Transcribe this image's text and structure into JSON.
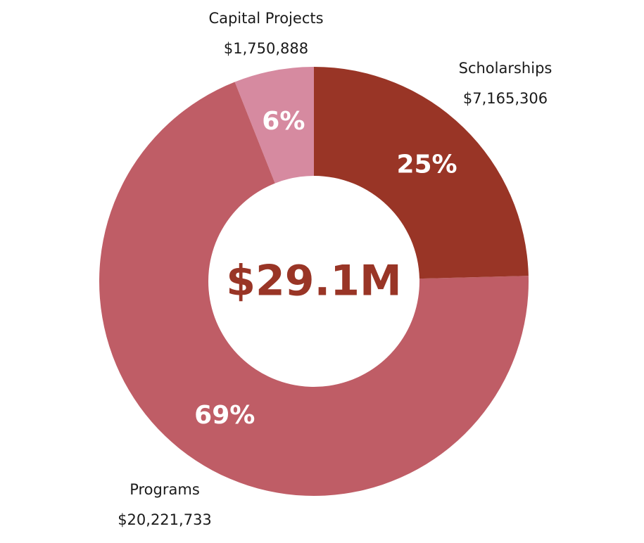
{
  "chart_data": {
    "type": "donut",
    "center_label": "$29.1M",
    "categories": [
      "Scholarships",
      "Programs",
      "Capital Projects"
    ],
    "values": [
      7165306,
      20221733,
      1750888
    ],
    "value_labels": [
      "$7,165,306",
      "$20,221,733",
      "$1,750,888"
    ],
    "percent_labels": [
      "25%",
      "69%",
      "6%"
    ],
    "colors": [
      "#993526",
      "#bf5d66",
      "#d68aa0"
    ]
  }
}
